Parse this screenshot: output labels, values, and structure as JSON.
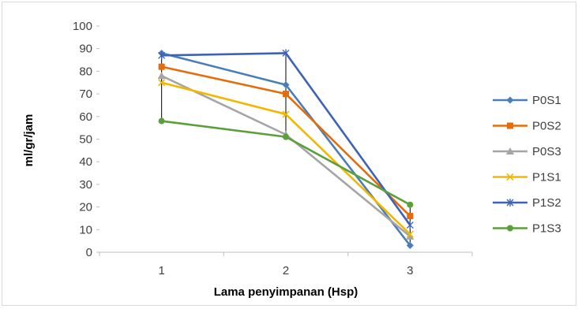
{
  "chart_data": {
    "type": "line",
    "x": [
      1,
      2,
      3
    ],
    "x_tick_labels": [
      "1",
      "2",
      "3"
    ],
    "xlabel": "Lama penyimpanan (Hsp)",
    "ylabel": "ml/gr/jam",
    "ylim": [
      0,
      100
    ],
    "y_ticks": [
      0,
      10,
      20,
      30,
      40,
      50,
      60,
      70,
      80,
      90,
      100
    ],
    "y_tick_labels": [
      "0",
      "10",
      "20",
      "30",
      "40",
      "50",
      "60",
      "70",
      "80",
      "90",
      "100"
    ],
    "grid": false,
    "legend_position": "right",
    "hi_lo_lines": true,
    "series": [
      {
        "name": "P0S1",
        "values": [
          88,
          74,
          3
        ],
        "color": "#4a7ebb",
        "marker": "diamond"
      },
      {
        "name": "P0S2",
        "values": [
          82,
          70,
          16
        ],
        "color": "#e46c0a",
        "marker": "square"
      },
      {
        "name": "P0S3",
        "values": [
          78,
          52,
          7
        ],
        "color": "#a5a5a5",
        "marker": "triangle"
      },
      {
        "name": "P1S1",
        "values": [
          75,
          61,
          8
        ],
        "color": "#f2b800",
        "marker": "x"
      },
      {
        "name": "P1S2",
        "values": [
          87,
          88,
          12
        ],
        "color": "#3d63b8",
        "marker": "star"
      },
      {
        "name": "P1S3",
        "values": [
          58,
          51,
          21
        ],
        "color": "#5b9f3a",
        "marker": "circle"
      }
    ]
  }
}
